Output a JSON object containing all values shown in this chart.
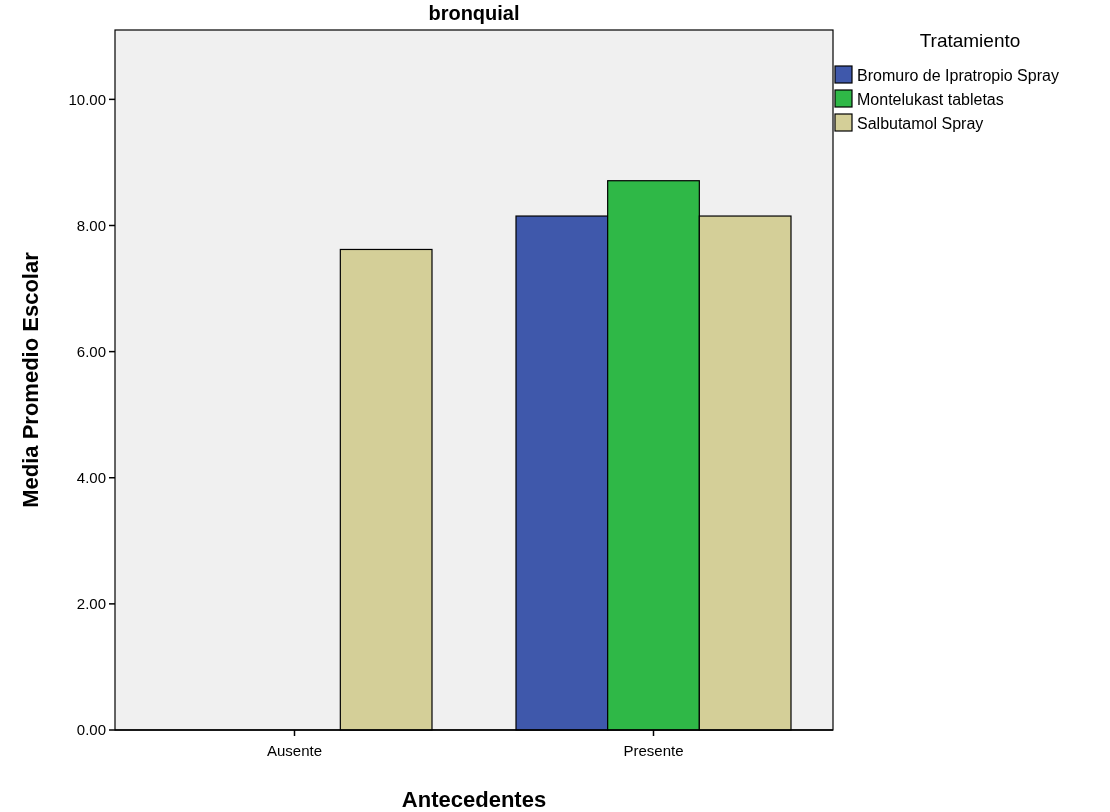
{
  "chart_data": {
    "type": "bar",
    "title": "bronquial",
    "xlabel": "Antecedentes",
    "ylabel": "Media Promedio Escolar",
    "legend_title": "Tratamiento",
    "legend": "top right",
    "grid": false,
    "categories": [
      "Ausente",
      "Presente"
    ],
    "series": [
      {
        "name": "Bromuro de Ipratropio Spray",
        "color": "#3f58ab",
        "values": [
          null,
          8.15
        ]
      },
      {
        "name": "Montelukast tabletas",
        "color": "#2fb847",
        "values": [
          null,
          8.71
        ]
      },
      {
        "name": "Salbutamol Spray",
        "color": "#d4cf98",
        "values": [
          7.62,
          8.15
        ]
      }
    ],
    "ylim": [
      0,
      11.1
    ],
    "yticks": [
      {
        "value": 0,
        "label": "0.00"
      },
      {
        "value": 2,
        "label": "2.00"
      },
      {
        "value": 4,
        "label": "4.00"
      },
      {
        "value": 6,
        "label": "6.00"
      },
      {
        "value": 8,
        "label": "8.00"
      },
      {
        "value": 10,
        "label": "10.00"
      }
    ]
  }
}
